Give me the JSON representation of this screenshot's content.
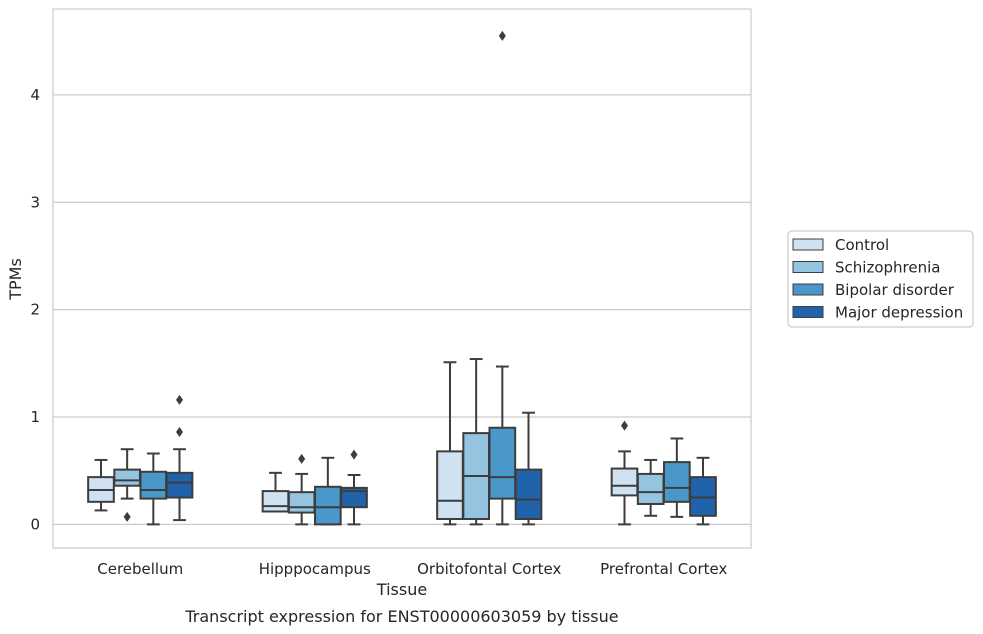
{
  "chart_data": {
    "type": "box",
    "xlabel": "Tissue",
    "ylabel": "TPMs",
    "caption": "Transcript expression for ENST00000603059 by tissue",
    "ylim": [
      -0.22,
      4.8
    ],
    "yticks": [
      0,
      1,
      2,
      3,
      4
    ],
    "grid": "horizontal",
    "legend_position": "right",
    "categories": [
      "Cerebellum",
      "Hipppocampus",
      "Orbitofontal Cortex",
      "Prefrontal Cortex"
    ],
    "series": [
      {
        "name": "Control",
        "color": "#d0e1f2",
        "boxes": [
          {
            "whislo": 0.13,
            "q1": 0.21,
            "med": 0.32,
            "q3": 0.44,
            "whishi": 0.6,
            "fliers": []
          },
          {
            "whislo": 0.12,
            "q1": 0.12,
            "med": 0.17,
            "q3": 0.31,
            "whishi": 0.48,
            "fliers": []
          },
          {
            "whislo": 0.0,
            "q1": 0.05,
            "med": 0.22,
            "q3": 0.68,
            "whishi": 1.51,
            "fliers": []
          },
          {
            "whislo": 0.0,
            "q1": 0.27,
            "med": 0.36,
            "q3": 0.52,
            "whishi": 0.68,
            "fliers": [
              0.92
            ]
          }
        ]
      },
      {
        "name": "Schizophrenia",
        "color": "#94c4df",
        "boxes": [
          {
            "whislo": 0.24,
            "q1": 0.36,
            "med": 0.41,
            "q3": 0.51,
            "whishi": 0.7,
            "fliers": [
              0.07
            ]
          },
          {
            "whislo": 0.0,
            "q1": 0.11,
            "med": 0.16,
            "q3": 0.3,
            "whishi": 0.47,
            "fliers": [
              0.61
            ]
          },
          {
            "whislo": 0.0,
            "q1": 0.05,
            "med": 0.45,
            "q3": 0.85,
            "whishi": 1.54,
            "fliers": []
          },
          {
            "whislo": 0.08,
            "q1": 0.19,
            "med": 0.3,
            "q3": 0.47,
            "whishi": 0.6,
            "fliers": []
          }
        ]
      },
      {
        "name": "Bipolar disorder",
        "color": "#4a98c9",
        "boxes": [
          {
            "whislo": 0.0,
            "q1": 0.24,
            "med": 0.32,
            "q3": 0.49,
            "whishi": 0.66,
            "fliers": []
          },
          {
            "whislo": 0.0,
            "q1": 0.0,
            "med": 0.16,
            "q3": 0.35,
            "whishi": 0.62,
            "fliers": []
          },
          {
            "whislo": 0.0,
            "q1": 0.24,
            "med": 0.44,
            "q3": 0.9,
            "whishi": 1.47,
            "fliers": [
              4.55
            ]
          },
          {
            "whislo": 0.07,
            "q1": 0.21,
            "med": 0.34,
            "q3": 0.58,
            "whishi": 0.8,
            "fliers": []
          }
        ]
      },
      {
        "name": "Major depression",
        "color": "#2163aa",
        "boxes": [
          {
            "whislo": 0.04,
            "q1": 0.25,
            "med": 0.39,
            "q3": 0.48,
            "whishi": 0.7,
            "fliers": [
              0.86,
              1.16
            ]
          },
          {
            "whislo": 0.0,
            "q1": 0.16,
            "med": 0.31,
            "q3": 0.34,
            "whishi": 0.46,
            "fliers": [
              0.65
            ]
          },
          {
            "whislo": 0.0,
            "q1": 0.05,
            "med": 0.23,
            "q3": 0.51,
            "whishi": 1.04,
            "fliers": []
          },
          {
            "whislo": 0.0,
            "q1": 0.08,
            "med": 0.25,
            "q3": 0.44,
            "whishi": 0.62,
            "fliers": []
          }
        ]
      }
    ]
  }
}
